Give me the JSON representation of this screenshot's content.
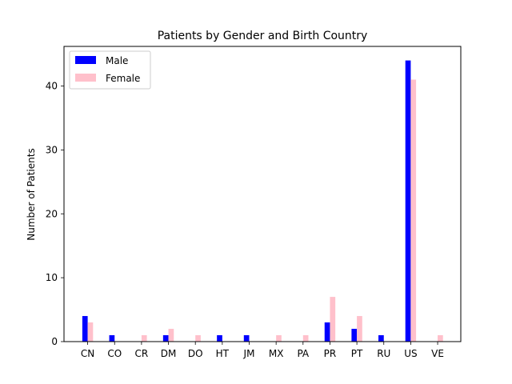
{
  "chart_data": {
    "type": "bar",
    "title": "Patients by Gender and Birth Country",
    "xlabel": "",
    "ylabel": "Number of Patients",
    "categories": [
      "CN",
      "CO",
      "CR",
      "DM",
      "DO",
      "HT",
      "JM",
      "MX",
      "PA",
      "PR",
      "PT",
      "RU",
      "US",
      "VE"
    ],
    "series": [
      {
        "name": "Male",
        "color": "#0000ff",
        "values": [
          4,
          1,
          0,
          1,
          0,
          1,
          1,
          0,
          0,
          3,
          2,
          1,
          44,
          0
        ]
      },
      {
        "name": "Female",
        "color": "#ffc0cb",
        "values": [
          3,
          0,
          1,
          2,
          1,
          0,
          0,
          1,
          1,
          7,
          4,
          0,
          41,
          1
        ]
      }
    ],
    "ylim": [
      0,
      46.2
    ],
    "yticks": [
      0,
      10,
      20,
      30,
      40
    ],
    "legend_position": "top-left",
    "grid": false
  }
}
